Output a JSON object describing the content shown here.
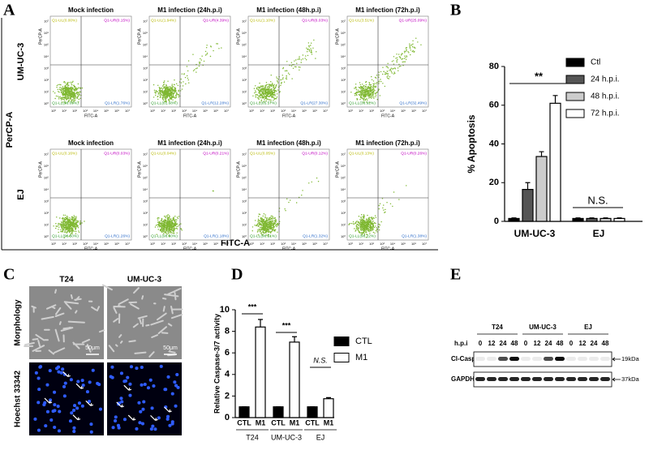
{
  "figure": {
    "A": {
      "letter": "A",
      "y_label": "PerCP-A",
      "x_label": "FITC-A",
      "plot_x_label": "FITC-A",
      "plot_y_label": "PerCP-A",
      "plot_ticks": [
        "10⁰",
        "10¹",
        "10²",
        "10³",
        "10⁴",
        "10⁵",
        "10⁶",
        "10⁷"
      ],
      "rows": [
        {
          "label": "UM-UC-3",
          "plots": [
            {
              "title": "Mock infection",
              "quadrants": [
                "Q1-UL(0.00%)",
                "Q1-UR(0.15%)",
                "Q1-LL(98.09%)",
                "Q1-LR(1.76%)"
              ]
            },
            {
              "title": "M1 infection (24h.p.i)",
              "quadrants": [
                "Q1-UL(1.94%)",
                "Q1-UR(4.39%)",
                "Q1-LL(81.68%)",
                "Q1-LR(12.28%)"
              ]
            },
            {
              "title": "M1 infection (48h.p.i)",
              "quadrants": [
                "Q1-UL(1.10%)",
                "Q1-UR(6.03%)",
                "Q1-LL(65.57%)",
                "Q1-LR(27.30%)"
              ]
            },
            {
              "title": "M1 infection (72h.p.i)",
              "quadrants": [
                "Q1-UL(3.51%)",
                "Q1-UR(25.09%)",
                "Q1-LL(38.92%)",
                "Q1-LR(32.49%)"
              ]
            }
          ]
        },
        {
          "label": "EJ",
          "plots": [
            {
              "title": "Mock infection",
              "quadrants": [
                "Q1-UL(0.16%)",
                "Q1-UR(0.03%)",
                "Q1-LL(98.50%)",
                "Q1-LR(1.26%)"
              ]
            },
            {
              "title": "M1 infection (24h.p.i)",
              "quadrants": [
                "Q1-UL(0.04%)",
                "Q1-UR(0.21%)",
                "Q1-LL(98.60%)",
                "Q1-LR(1.18%)"
              ]
            },
            {
              "title": "M1 infection (48h.p.i)",
              "quadrants": [
                "Q1-UL(0.05%)",
                "Q1-UR(0.12%)",
                "Q1-LL(98.51%)",
                "Q1-LR(1.32%)"
              ]
            },
            {
              "title": "M1 infection (72h.p.i)",
              "quadrants": [
                "Q1-UL(0.13%)",
                "Q1-UR(0.26%)",
                "Q1-LL(98.22%)",
                "Q1-LR(1.38%)"
              ]
            }
          ]
        }
      ]
    },
    "C": {
      "letter": "C",
      "columns": [
        "T24",
        "UM-UC-3"
      ],
      "rows": [
        "Morphology",
        "Hoechst 33342"
      ],
      "scale_bar": "50μm"
    },
    "E": {
      "letter": "E",
      "groups": [
        "T24",
        "UM-UC-3",
        "EJ"
      ],
      "row_label": "h.p.i",
      "hours": [
        "0",
        "12",
        "24",
        "48"
      ],
      "blots": [
        {
          "label": "Cl-Caspase-3",
          "size": "19kDa"
        },
        {
          "label": "GAPDH",
          "size": "37kDa"
        }
      ]
    }
  },
  "chart_data": [
    {
      "type": "bar",
      "letter": "B",
      "y_label": "% Apoptosis",
      "categories": [
        "UM-UC-3",
        "EJ"
      ],
      "series": [
        {
          "name": "Ctl",
          "color": "#000000",
          "values": [
            1.5,
            1.5
          ],
          "errors": [
            0.3,
            0.3
          ]
        },
        {
          "name": "24 h.p.i.",
          "color": "#555555",
          "values": [
            16.5,
            1.5
          ],
          "errors": [
            3.5,
            0.3
          ]
        },
        {
          "name": "48 h.p.i.",
          "color": "#cccccc",
          "values": [
            33.5,
            1.5
          ],
          "errors": [
            2.5,
            0.3
          ]
        },
        {
          "name": "72 h.p.i.",
          "color": "#ffffff",
          "values": [
            61,
            1.5
          ],
          "errors": [
            4,
            0.3
          ]
        }
      ],
      "ylim": [
        0,
        80
      ],
      "yticks": [
        0,
        20,
        40,
        60,
        80
      ],
      "annotations": [
        "**",
        "N.S."
      ]
    },
    {
      "type": "bar",
      "letter": "D",
      "y_label": "Relative Caspase-3/7 activity",
      "categories": [
        "T24",
        "UM-UC-3",
        "EJ"
      ],
      "series": [
        {
          "name": "CTL",
          "color": "#000000",
          "values": [
            1,
            1,
            1
          ],
          "errors": [
            0,
            0,
            0
          ]
        },
        {
          "name": "M1",
          "color": "#ffffff",
          "values": [
            8.4,
            7.0,
            1.75
          ],
          "errors": [
            0.7,
            0.5,
            0.1
          ]
        }
      ],
      "ylim": [
        0,
        10
      ],
      "yticks": [
        0,
        2,
        4,
        6,
        8,
        10
      ],
      "annotations": [
        "***",
        "***",
        "N.S."
      ]
    }
  ]
}
